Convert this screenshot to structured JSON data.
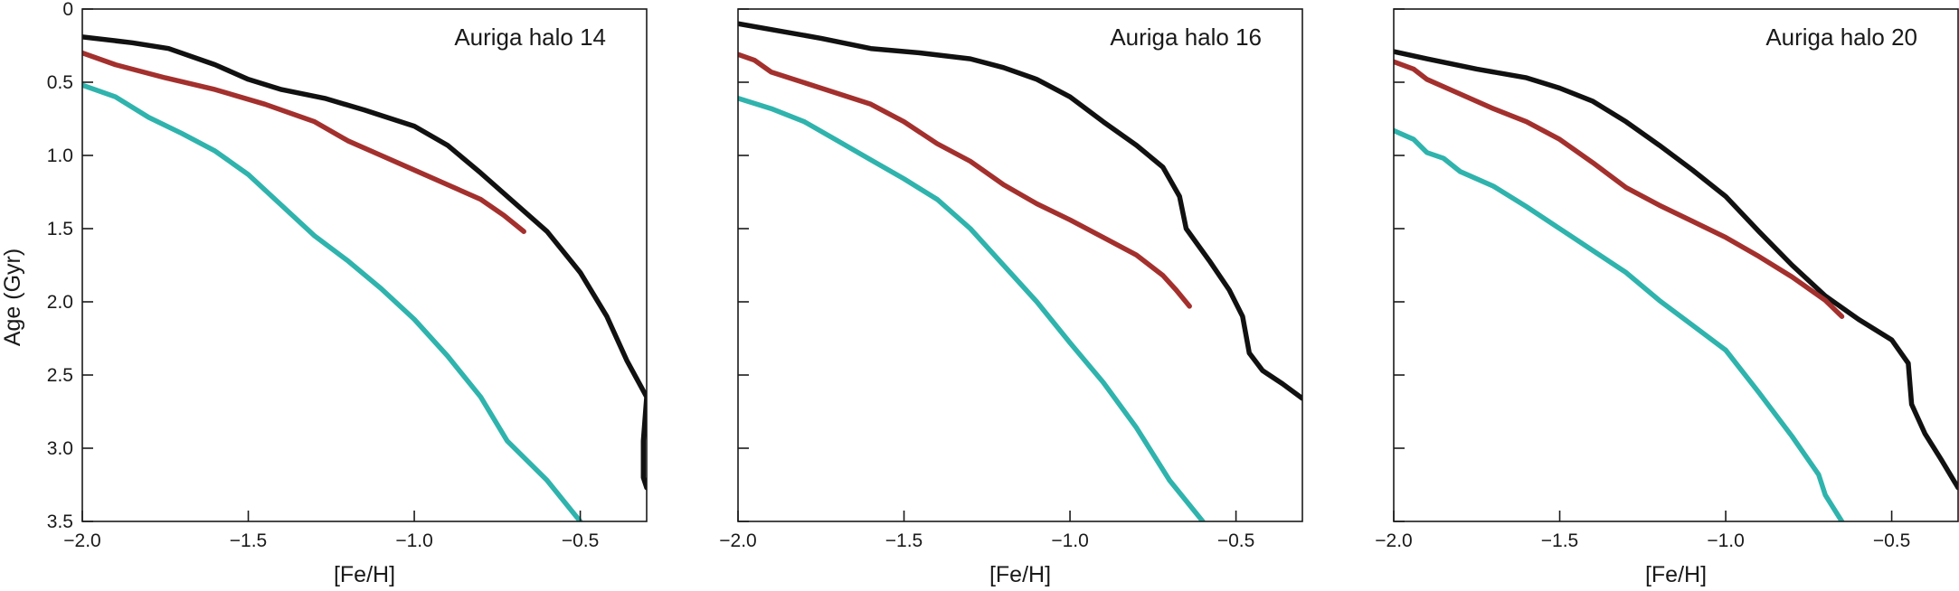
{
  "figure": {
    "ylabel": "Age (Gyr)",
    "xlabel": "[Fe/H]",
    "xlim": [
      -2.0,
      -0.3
    ],
    "ylim": [
      0,
      3.5
    ],
    "y_inverted": true,
    "x_ticks": [
      -2.0,
      -1.5,
      -1.0,
      -0.5
    ],
    "x_tick_labels": [
      "−2.0",
      "−1.5",
      "−1.0",
      "−0.5"
    ],
    "y_ticks": [
      0,
      0.5,
      1.0,
      1.5,
      2.0,
      2.5,
      3.0,
      3.5
    ],
    "y_tick_labels": [
      "0",
      "0.5",
      "1.0",
      "1.5",
      "2.0",
      "2.5",
      "3.0",
      "3.5"
    ],
    "grid": false,
    "legend": "none",
    "colors": {
      "black_series": "#111111",
      "red_series": "#a3302d",
      "teal_series": "#2fb3ad",
      "axes": "#1a1a1a"
    }
  },
  "chart_data": [
    {
      "type": "line",
      "title": "Auriga halo 14",
      "xlabel": "[Fe/H]",
      "ylabel": "Age (Gyr)",
      "xlim": [
        -2.0,
        -0.3
      ],
      "ylim": [
        3.5,
        0
      ],
      "series": [
        {
          "color": "#111111",
          "points": [
            [
              -2.0,
              0.19
            ],
            [
              -1.85,
              0.23
            ],
            [
              -1.74,
              0.27
            ],
            [
              -1.6,
              0.38
            ],
            [
              -1.5,
              0.48
            ],
            [
              -1.4,
              0.55
            ],
            [
              -1.27,
              0.61
            ],
            [
              -1.15,
              0.69
            ],
            [
              -1.0,
              0.8
            ],
            [
              -0.9,
              0.93
            ],
            [
              -0.8,
              1.12
            ],
            [
              -0.7,
              1.32
            ],
            [
              -0.6,
              1.52
            ],
            [
              -0.5,
              1.8
            ],
            [
              -0.42,
              2.1
            ],
            [
              -0.36,
              2.4
            ],
            [
              -0.3,
              2.65
            ],
            [
              -0.31,
              2.95
            ],
            [
              -0.31,
              3.2
            ],
            [
              -0.3,
              3.27
            ]
          ]
        },
        {
          "color": "#a3302d",
          "points": [
            [
              -2.0,
              0.3
            ],
            [
              -1.9,
              0.38
            ],
            [
              -1.75,
              0.47
            ],
            [
              -1.6,
              0.55
            ],
            [
              -1.45,
              0.65
            ],
            [
              -1.3,
              0.77
            ],
            [
              -1.2,
              0.9
            ],
            [
              -1.1,
              1.0
            ],
            [
              -1.0,
              1.1
            ],
            [
              -0.9,
              1.2
            ],
            [
              -0.8,
              1.3
            ],
            [
              -0.73,
              1.41
            ],
            [
              -0.67,
              1.52
            ]
          ]
        },
        {
          "color": "#2fb3ad",
          "points": [
            [
              -2.0,
              0.52
            ],
            [
              -1.9,
              0.6
            ],
            [
              -1.8,
              0.74
            ],
            [
              -1.7,
              0.85
            ],
            [
              -1.6,
              0.97
            ],
            [
              -1.5,
              1.13
            ],
            [
              -1.4,
              1.34
            ],
            [
              -1.3,
              1.55
            ],
            [
              -1.2,
              1.72
            ],
            [
              -1.1,
              1.91
            ],
            [
              -1.0,
              2.12
            ],
            [
              -0.9,
              2.37
            ],
            [
              -0.8,
              2.65
            ],
            [
              -0.72,
              2.95
            ],
            [
              -0.6,
              3.22
            ],
            [
              -0.5,
              3.5
            ]
          ]
        }
      ]
    },
    {
      "type": "line",
      "title": "Auriga halo 16",
      "xlabel": "[Fe/H]",
      "ylabel": "Age (Gyr)",
      "xlim": [
        -2.0,
        -0.3
      ],
      "ylim": [
        3.5,
        0
      ],
      "series": [
        {
          "color": "#111111",
          "points": [
            [
              -2.0,
              0.1
            ],
            [
              -1.9,
              0.14
            ],
            [
              -1.75,
              0.2
            ],
            [
              -1.6,
              0.27
            ],
            [
              -1.45,
              0.3
            ],
            [
              -1.3,
              0.34
            ],
            [
              -1.2,
              0.4
            ],
            [
              -1.1,
              0.48
            ],
            [
              -1.0,
              0.6
            ],
            [
              -0.9,
              0.77
            ],
            [
              -0.8,
              0.93
            ],
            [
              -0.72,
              1.08
            ],
            [
              -0.67,
              1.28
            ],
            [
              -0.65,
              1.5
            ],
            [
              -0.58,
              1.72
            ],
            [
              -0.52,
              1.92
            ],
            [
              -0.48,
              2.1
            ],
            [
              -0.46,
              2.35
            ],
            [
              -0.42,
              2.47
            ],
            [
              -0.36,
              2.56
            ],
            [
              -0.3,
              2.66
            ]
          ]
        },
        {
          "color": "#a3302d",
          "points": [
            [
              -2.0,
              0.31
            ],
            [
              -1.95,
              0.35
            ],
            [
              -1.9,
              0.43
            ],
            [
              -1.75,
              0.54
            ],
            [
              -1.6,
              0.65
            ],
            [
              -1.5,
              0.77
            ],
            [
              -1.4,
              0.92
            ],
            [
              -1.3,
              1.04
            ],
            [
              -1.2,
              1.2
            ],
            [
              -1.1,
              1.33
            ],
            [
              -1.0,
              1.44
            ],
            [
              -0.9,
              1.56
            ],
            [
              -0.8,
              1.68
            ],
            [
              -0.72,
              1.82
            ],
            [
              -0.68,
              1.92
            ],
            [
              -0.64,
              2.03
            ]
          ]
        },
        {
          "color": "#2fb3ad",
          "points": [
            [
              -2.0,
              0.61
            ],
            [
              -1.9,
              0.68
            ],
            [
              -1.8,
              0.77
            ],
            [
              -1.7,
              0.9
            ],
            [
              -1.6,
              1.03
            ],
            [
              -1.5,
              1.16
            ],
            [
              -1.4,
              1.3
            ],
            [
              -1.3,
              1.5
            ],
            [
              -1.2,
              1.75
            ],
            [
              -1.1,
              2.0
            ],
            [
              -1.0,
              2.28
            ],
            [
              -0.9,
              2.55
            ],
            [
              -0.8,
              2.86
            ],
            [
              -0.7,
              3.22
            ],
            [
              -0.6,
              3.5
            ]
          ]
        }
      ]
    },
    {
      "type": "line",
      "title": "Auriga halo 20",
      "xlabel": "[Fe/H]",
      "ylabel": "Age (Gyr)",
      "xlim": [
        -2.0,
        -0.3
      ],
      "ylim": [
        3.5,
        0
      ],
      "series": [
        {
          "color": "#111111",
          "points": [
            [
              -2.0,
              0.29
            ],
            [
              -1.9,
              0.34
            ],
            [
              -1.75,
              0.41
            ],
            [
              -1.6,
              0.47
            ],
            [
              -1.5,
              0.54
            ],
            [
              -1.4,
              0.63
            ],
            [
              -1.3,
              0.77
            ],
            [
              -1.2,
              0.93
            ],
            [
              -1.1,
              1.1
            ],
            [
              -1.0,
              1.28
            ],
            [
              -0.9,
              1.52
            ],
            [
              -0.8,
              1.75
            ],
            [
              -0.7,
              1.96
            ],
            [
              -0.6,
              2.12
            ],
            [
              -0.5,
              2.26
            ],
            [
              -0.45,
              2.42
            ],
            [
              -0.44,
              2.7
            ],
            [
              -0.4,
              2.9
            ],
            [
              -0.35,
              3.08
            ],
            [
              -0.3,
              3.27
            ]
          ]
        },
        {
          "color": "#a3302d",
          "points": [
            [
              -2.0,
              0.36
            ],
            [
              -1.94,
              0.41
            ],
            [
              -1.9,
              0.48
            ],
            [
              -1.8,
              0.58
            ],
            [
              -1.7,
              0.68
            ],
            [
              -1.6,
              0.77
            ],
            [
              -1.5,
              0.89
            ],
            [
              -1.4,
              1.05
            ],
            [
              -1.3,
              1.22
            ],
            [
              -1.2,
              1.34
            ],
            [
              -1.1,
              1.45
            ],
            [
              -1.0,
              1.56
            ],
            [
              -0.9,
              1.69
            ],
            [
              -0.8,
              1.83
            ],
            [
              -0.7,
              1.99
            ],
            [
              -0.65,
              2.1
            ]
          ]
        },
        {
          "color": "#2fb3ad",
          "points": [
            [
              -2.0,
              0.83
            ],
            [
              -1.94,
              0.89
            ],
            [
              -1.9,
              0.98
            ],
            [
              -1.85,
              1.02
            ],
            [
              -1.8,
              1.11
            ],
            [
              -1.7,
              1.21
            ],
            [
              -1.6,
              1.35
            ],
            [
              -1.5,
              1.5
            ],
            [
              -1.4,
              1.65
            ],
            [
              -1.3,
              1.8
            ],
            [
              -1.2,
              1.99
            ],
            [
              -1.1,
              2.16
            ],
            [
              -1.0,
              2.33
            ],
            [
              -0.9,
              2.62
            ],
            [
              -0.8,
              2.92
            ],
            [
              -0.72,
              3.18
            ],
            [
              -0.7,
              3.32
            ],
            [
              -0.65,
              3.5
            ]
          ]
        }
      ]
    }
  ]
}
